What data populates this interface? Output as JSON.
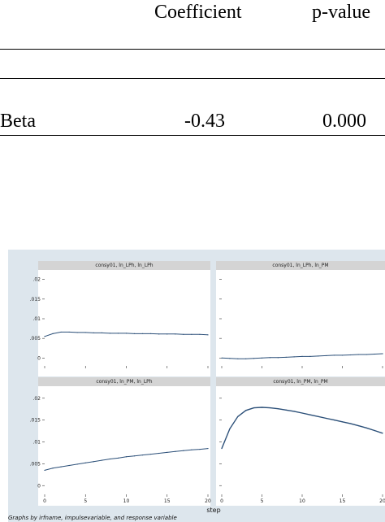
{
  "table": {
    "headers": [
      "Coefficient",
      "p-value"
    ],
    "row": {
      "label": "Beta",
      "coefficient": "-0.43",
      "pvalue": "0.000"
    }
  },
  "figure": {
    "background": "#dde6ed",
    "line_color": "#2b4f78",
    "xlabel": "step",
    "footnote": "Graphs by irfname, impulsevariable, and response variable"
  },
  "chart_data": {
    "type": "line",
    "xlabel": "step",
    "x": [
      0,
      1,
      2,
      3,
      4,
      5,
      6,
      7,
      8,
      9,
      10,
      11,
      12,
      13,
      14,
      15,
      16,
      17,
      18,
      19,
      20
    ],
    "ylim": [
      -0.002,
      0.022
    ],
    "yticks": [
      "0",
      ".005",
      ".01",
      ".015",
      ".02"
    ],
    "xticks": [
      "0",
      "5",
      "10",
      "15",
      "20"
    ],
    "panels": [
      {
        "title": "consy01, ln_LPh, ln_LPh",
        "values": [
          0.0055,
          0.0062,
          0.0066,
          0.0066,
          0.0065,
          0.0065,
          0.0064,
          0.0064,
          0.0063,
          0.0063,
          0.0063,
          0.0062,
          0.0062,
          0.0062,
          0.0061,
          0.0061,
          0.0061,
          0.006,
          0.006,
          0.006,
          0.0059
        ]
      },
      {
        "title": "consy01, ln_LPh, ln_PM",
        "values": [
          0.0,
          -0.0001,
          -0.0002,
          -0.0002,
          -0.0001,
          0.0,
          0.0001,
          0.0001,
          0.0002,
          0.0003,
          0.0004,
          0.0004,
          0.0005,
          0.0006,
          0.0007,
          0.0007,
          0.0008,
          0.0009,
          0.0009,
          0.001,
          0.0011
        ]
      },
      {
        "title": "consy01, ln_PM, ln_LPh",
        "values": [
          0.0035,
          0.004,
          0.0043,
          0.0046,
          0.0049,
          0.0052,
          0.0055,
          0.0058,
          0.0061,
          0.0063,
          0.0066,
          0.0068,
          0.007,
          0.0072,
          0.0074,
          0.0076,
          0.0078,
          0.008,
          0.0082,
          0.0083,
          0.0085
        ]
      },
      {
        "title": "consy01, ln_PM, ln_PM",
        "values": [
          0.0085,
          0.013,
          0.0158,
          0.0172,
          0.0178,
          0.0179,
          0.0178,
          0.0176,
          0.0173,
          0.017,
          0.0166,
          0.0162,
          0.0158,
          0.0154,
          0.015,
          0.0146,
          0.0142,
          0.0137,
          0.0132,
          0.0126,
          0.012
        ]
      }
    ]
  }
}
